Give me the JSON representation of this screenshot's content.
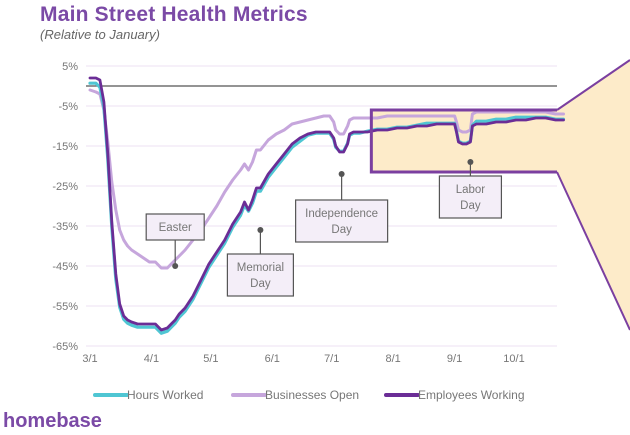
{
  "header": {
    "title": "Main Street Health Metrics",
    "subtitle": "(Relative to January)"
  },
  "brand": "homebase",
  "colors": {
    "hours_worked": "#4fc6d3",
    "businesses_open": "#c6a6dc",
    "employees_working": "#6b2d96",
    "highlight_fill": "#fdebc9",
    "highlight_border": "#7b3fa0",
    "grid": "#ece2f3",
    "zero_line": "#555555"
  },
  "chart_data": {
    "type": "line",
    "title": "Main Street Health Metrics",
    "subtitle": "(Relative to January)",
    "xlabel": "",
    "ylabel": "",
    "x_unit": "days since 3/1",
    "xlim": [
      0,
      239
    ],
    "ylim": [
      -65,
      5
    ],
    "yticks": [
      5,
      -5,
      -15,
      -25,
      -35,
      -45,
      -55,
      -65
    ],
    "ytick_labels": [
      "5%",
      "-5%",
      "-15%",
      "-25%",
      "-35%",
      "-45%",
      "-55%",
      "-65%"
    ],
    "xticks": [
      0,
      31,
      61,
      92,
      122,
      153,
      184,
      214
    ],
    "xtick_labels": [
      "3/1",
      "4/1",
      "5/1",
      "6/1",
      "7/1",
      "8/1",
      "9/1",
      "10/1"
    ],
    "reference_line": 0,
    "grid": true,
    "legend": "bottom",
    "series": [
      {
        "name": "Hours Worked",
        "key": "hours_worked",
        "x": [
          0,
          3,
          5,
          7,
          9,
          11,
          13,
          15,
          17,
          19,
          21,
          24,
          27,
          30,
          33,
          36,
          39,
          41,
          43,
          45,
          48,
          52,
          56,
          60,
          64,
          68,
          72,
          76,
          78,
          80,
          82,
          84,
          86,
          90,
          94,
          98,
          102,
          106,
          110,
          114,
          118,
          121,
          123,
          124,
          126,
          128,
          130,
          131,
          133,
          136,
          140,
          145,
          150,
          155,
          160,
          165,
          170,
          175,
          180,
          184,
          185,
          186,
          188,
          190,
          192,
          193,
          195,
          200,
          205,
          210,
          215,
          220,
          225,
          230,
          235,
          239
        ],
        "y": [
          1,
          1,
          0,
          -5,
          -18,
          -35,
          -48,
          -55,
          -58,
          -59,
          -59.5,
          -60,
          -60,
          -60,
          -60,
          -61.5,
          -61,
          -60,
          -59,
          -57.5,
          -56,
          -53,
          -49,
          -45,
          -42,
          -39,
          -35,
          -32,
          -29.5,
          -31,
          -29,
          -26,
          -26,
          -22.5,
          -20,
          -17.5,
          -15,
          -13.5,
          -12,
          -11.5,
          -11.5,
          -11.5,
          -13,
          -15,
          -16,
          -16,
          -14,
          -12,
          -11.5,
          -11.5,
          -11,
          -10.5,
          -10.5,
          -10,
          -10,
          -9.5,
          -9,
          -9,
          -9,
          -9,
          -11,
          -13.5,
          -14,
          -14,
          -13.5,
          -9.5,
          -8.5,
          -8.5,
          -8,
          -8,
          -7.5,
          -7.5,
          -7.5,
          -7.5,
          -8,
          -8
        ]
      },
      {
        "name": "Businesses Open",
        "key": "businesses_open",
        "x": [
          0,
          3,
          5,
          7,
          9,
          11,
          13,
          15,
          17,
          19,
          21,
          24,
          27,
          30,
          33,
          36,
          39,
          41,
          43,
          45,
          48,
          52,
          56,
          60,
          64,
          68,
          72,
          76,
          78,
          80,
          82,
          84,
          86,
          90,
          94,
          98,
          102,
          106,
          110,
          114,
          118,
          121,
          123,
          124,
          126,
          128,
          130,
          131,
          133,
          136,
          140,
          145,
          150,
          155,
          160,
          165,
          170,
          175,
          180,
          184,
          185,
          186,
          188,
          190,
          192,
          193,
          195,
          200,
          205,
          210,
          215,
          220,
          225,
          230,
          235,
          239
        ],
        "y": [
          -1,
          -1.5,
          -2,
          -6,
          -14,
          -24,
          -31,
          -36,
          -38.5,
          -40,
          -41,
          -42,
          -43,
          -44,
          -44,
          -45.5,
          -45.5,
          -44.5,
          -43.5,
          -42.5,
          -41,
          -38.5,
          -36,
          -33,
          -30,
          -26.5,
          -23.5,
          -21,
          -19.5,
          -21,
          -19,
          -16,
          -16,
          -13.5,
          -12,
          -11,
          -9.5,
          -9,
          -8.5,
          -8,
          -7.5,
          -7.5,
          -9,
          -11,
          -12,
          -12,
          -10,
          -8.5,
          -8,
          -8,
          -8,
          -8,
          -7.5,
          -7.5,
          -7.5,
          -7.5,
          -7.5,
          -7.5,
          -7.5,
          -7.5,
          -9,
          -11,
          -11.5,
          -11.5,
          -11,
          -7,
          -6.5,
          -6.5,
          -6.5,
          -6.5,
          -6.5,
          -6.5,
          -6.5,
          -6.5,
          -7,
          -7
        ]
      },
      {
        "name": "Employees Working",
        "key": "employees_working",
        "x": [
          0,
          3,
          5,
          7,
          9,
          11,
          13,
          15,
          17,
          19,
          21,
          24,
          27,
          30,
          33,
          36,
          39,
          41,
          43,
          45,
          48,
          52,
          56,
          60,
          64,
          68,
          72,
          76,
          78,
          80,
          82,
          84,
          86,
          90,
          94,
          98,
          102,
          106,
          110,
          114,
          118,
          121,
          123,
          124,
          126,
          128,
          130,
          131,
          133,
          136,
          140,
          145,
          150,
          155,
          160,
          165,
          170,
          175,
          180,
          184,
          185,
          186,
          188,
          190,
          192,
          193,
          195,
          200,
          205,
          210,
          215,
          220,
          225,
          230,
          235,
          239
        ],
        "y": [
          2,
          2,
          1.5,
          -4,
          -17,
          -34,
          -47,
          -54.5,
          -57.5,
          -58.5,
          -59,
          -59.5,
          -59.5,
          -59.5,
          -59.5,
          -61,
          -60.5,
          -59.5,
          -58.5,
          -57,
          -55.5,
          -52.5,
          -48.5,
          -44.5,
          -41.5,
          -38.5,
          -34.5,
          -31.5,
          -29,
          -31,
          -28.5,
          -25.5,
          -25.5,
          -22,
          -19.5,
          -17,
          -14.5,
          -13,
          -12,
          -11.5,
          -11.5,
          -11.5,
          -13,
          -15,
          -16.5,
          -16.5,
          -14.5,
          -12,
          -11.5,
          -11.5,
          -11.5,
          -11,
          -11,
          -10.5,
          -10.5,
          -10,
          -10,
          -9.5,
          -9.5,
          -9.5,
          -11.5,
          -14,
          -14.5,
          -14.5,
          -14,
          -10,
          -9.5,
          -9.5,
          -9,
          -9,
          -8.5,
          -8.5,
          -8,
          -8,
          -8.5,
          -8.5
        ]
      }
    ],
    "annotations": [
      {
        "label": "Easter",
        "lines": [
          "Easter"
        ],
        "x": 43,
        "y": -45
      },
      {
        "label": "Memorial Day",
        "lines": [
          "Memorial",
          "Day"
        ],
        "x": 86,
        "y": -36
      },
      {
        "label": "Independence Day",
        "lines": [
          "Independence",
          "Day"
        ],
        "x": 127,
        "y": -22
      },
      {
        "label": "Labor Day",
        "lines": [
          "Labor",
          "Day"
        ],
        "x": 192,
        "y": -19
      }
    ],
    "highlight_range": {
      "x": [
        142,
        239
      ],
      "y": [
        -6,
        -21.5
      ]
    }
  }
}
